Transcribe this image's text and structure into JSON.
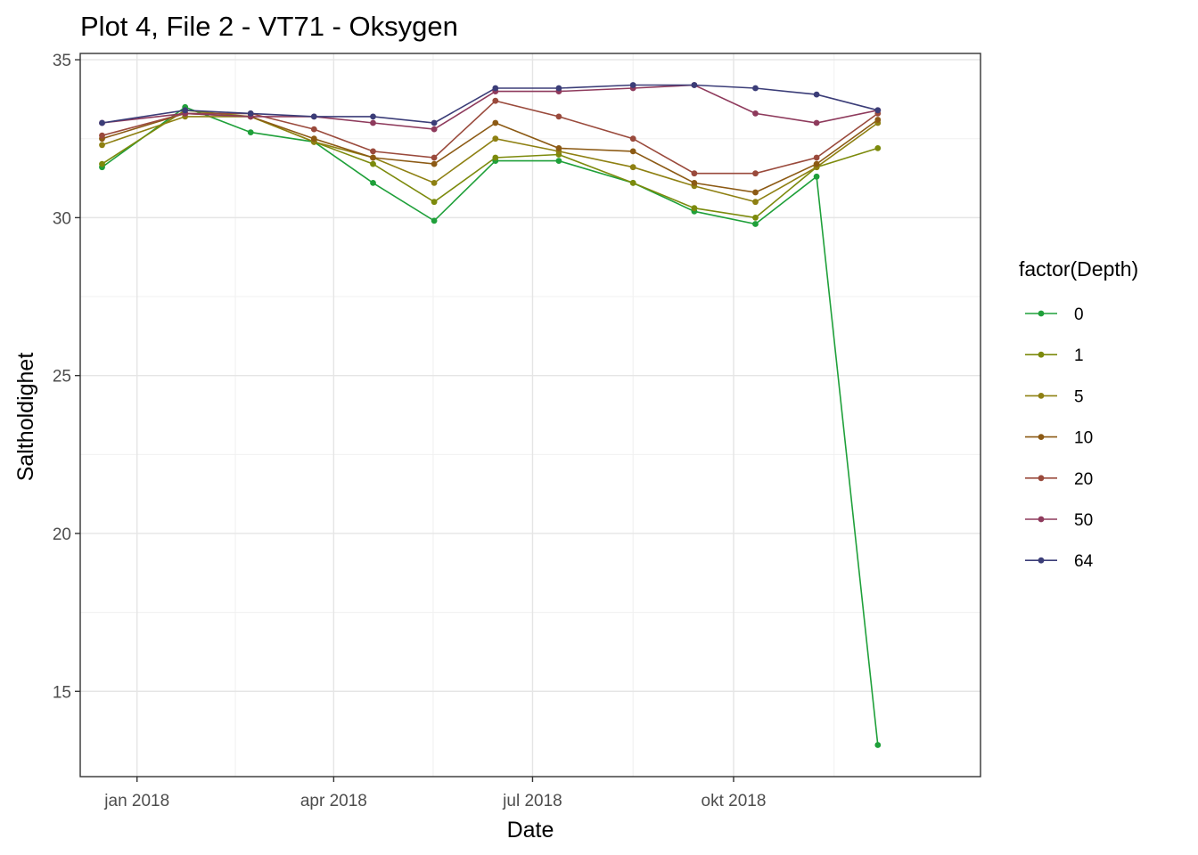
{
  "chart_data": {
    "type": "line",
    "title": "Plot 4, File 2 - VT71  -  Oksygen",
    "xlabel": "Date",
    "ylabel": "Saltholdighet",
    "x_axis_type": "date",
    "xlim": [
      "2017-12-06",
      "2019-01-22"
    ],
    "ylim": [
      12.3,
      35.2
    ],
    "x_ticks": [
      {
        "date": "2018-01-01",
        "label": "jan 2018"
      },
      {
        "date": "2018-04-01",
        "label": "apr 2018"
      },
      {
        "date": "2018-07-01",
        "label": "jul 2018"
      },
      {
        "date": "2018-10-01",
        "label": "okt 2018"
      }
    ],
    "y_ticks": [
      15,
      20,
      25,
      30,
      35
    ],
    "grid": true,
    "legend_title": "factor(Depth)",
    "legend_position": "right",
    "x": [
      "2017-12-16",
      "2018-01-23",
      "2018-02-22",
      "2018-03-23",
      "2018-04-19",
      "2018-05-17",
      "2018-06-14",
      "2018-07-13",
      "2018-08-16",
      "2018-09-13",
      "2018-10-11",
      "2018-11-08",
      "2018-12-06"
    ],
    "series": [
      {
        "name": "0",
        "color": "#1fa03a",
        "values": [
          31.6,
          33.5,
          32.7,
          32.4,
          31.1,
          29.9,
          31.8,
          31.8,
          31.1,
          30.2,
          29.8,
          31.3,
          13.3
        ]
      },
      {
        "name": "1",
        "color": "#7c8a0c",
        "values": [
          31.7,
          33.4,
          33.2,
          32.4,
          31.7,
          30.5,
          31.9,
          32.0,
          31.1,
          30.3,
          30.0,
          31.6,
          32.2
        ]
      },
      {
        "name": "5",
        "color": "#8e8012",
        "values": [
          32.3,
          33.2,
          33.2,
          32.4,
          31.9,
          31.1,
          32.5,
          32.1,
          31.6,
          31.0,
          30.5,
          31.6,
          33.0
        ]
      },
      {
        "name": "10",
        "color": "#8c5a14",
        "values": [
          32.5,
          33.3,
          33.2,
          32.5,
          31.9,
          31.7,
          33.0,
          32.2,
          32.1,
          31.1,
          30.8,
          31.7,
          33.1
        ]
      },
      {
        "name": "20",
        "color": "#9a4a3c",
        "values": [
          32.6,
          33.3,
          33.3,
          32.8,
          32.1,
          31.9,
          33.7,
          33.2,
          32.5,
          31.4,
          31.4,
          31.9,
          33.3
        ]
      },
      {
        "name": "50",
        "color": "#8e3a5c",
        "values": [
          33.0,
          33.3,
          33.2,
          33.2,
          33.0,
          32.8,
          34.0,
          34.0,
          34.1,
          34.2,
          33.3,
          33.0,
          33.4
        ]
      },
      {
        "name": "64",
        "color": "#3b3d78",
        "values": [
          33.0,
          33.4,
          33.3,
          33.2,
          33.2,
          33.0,
          34.1,
          34.1,
          34.2,
          34.2,
          34.1,
          33.9,
          33.4
        ]
      }
    ]
  }
}
